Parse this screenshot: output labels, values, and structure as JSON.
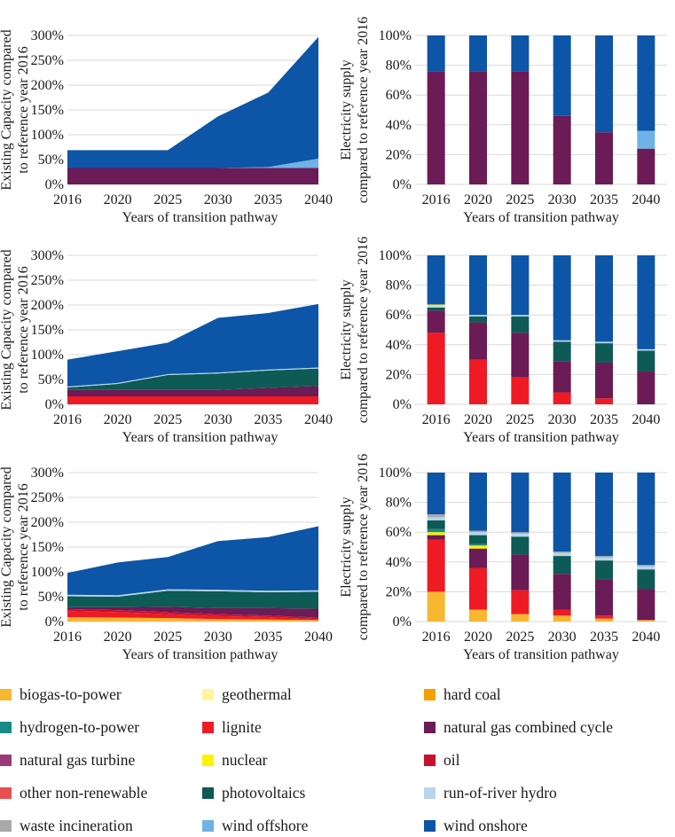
{
  "chart_data": [
    {
      "panel": "scenario-1-capacity",
      "type": "area",
      "stacked": true,
      "x": [
        2016,
        2020,
        2025,
        2030,
        2035,
        2040
      ],
      "ylabel": [
        "Existing Capacity compared",
        "to reference year 2016"
      ],
      "xlabel": "Years of transition pathway",
      "ylim": [
        0,
        300
      ],
      "yticks": [
        "0%",
        "50%",
        "100%",
        "150%",
        "200%",
        "250%",
        "300%"
      ],
      "series": [
        {
          "name": "natural gas combined cycle",
          "values": [
            33,
            33,
            33,
            33,
            33,
            33
          ]
        },
        {
          "name": "wind offshore",
          "values": [
            0,
            0,
            0,
            0,
            2,
            19
          ]
        },
        {
          "name": "wind onshore",
          "values": [
            36,
            36,
            36,
            104,
            150,
            245
          ]
        }
      ]
    },
    {
      "panel": "scenario-1-supply",
      "type": "bar",
      "stacked": true,
      "categories": [
        "2016",
        "2020",
        "2025",
        "2030",
        "2035",
        "2040"
      ],
      "ylabel": [
        "Electricity supply",
        "compared to reference year 2016"
      ],
      "xlabel": "Years of transition pathway",
      "ylim": [
        0,
        100
      ],
      "yticks": [
        "0%",
        "20%",
        "40%",
        "60%",
        "80%",
        "100%"
      ],
      "series": [
        {
          "name": "natural gas combined cycle",
          "values": [
            76,
            76,
            76,
            46,
            35,
            24
          ]
        },
        {
          "name": "wind offshore",
          "values": [
            0,
            0,
            0,
            0,
            0,
            12
          ]
        },
        {
          "name": "wind onshore",
          "values": [
            24,
            24,
            24,
            54,
            65,
            64
          ]
        }
      ]
    },
    {
      "panel": "scenario-2-capacity",
      "type": "area",
      "stacked": true,
      "x": [
        2016,
        2020,
        2025,
        2030,
        2035,
        2040
      ],
      "ylabel": [
        "Existing Capacity compared",
        "to reference year 2016"
      ],
      "xlabel": "Years of transition pathway",
      "ylim": [
        0,
        300
      ],
      "yticks": [
        "0%",
        "50%",
        "100%",
        "150%",
        "200%",
        "250%",
        "300%"
      ],
      "series": [
        {
          "name": "lignite",
          "values": [
            16,
            16,
            16,
            16,
            16,
            16
          ]
        },
        {
          "name": "natural gas combined cycle",
          "values": [
            13,
            13,
            13,
            13,
            17,
            21
          ]
        },
        {
          "name": "photovoltaics",
          "values": [
            5,
            12,
            30,
            33,
            35,
            35
          ]
        },
        {
          "name": "run-of-river hydro",
          "values": [
            2,
            2,
            2,
            2,
            2,
            2
          ]
        },
        {
          "name": "wind onshore",
          "values": [
            54,
            64,
            63,
            110,
            114,
            128
          ]
        }
      ]
    },
    {
      "panel": "scenario-2-supply",
      "type": "bar",
      "stacked": true,
      "categories": [
        "2016",
        "2020",
        "2025",
        "2030",
        "2035",
        "2040"
      ],
      "ylabel": [
        "Electricity supply",
        "compared to reference year 2016"
      ],
      "xlabel": "Years of transition pathway",
      "ylim": [
        0,
        100
      ],
      "yticks": [
        "0%",
        "20%",
        "40%",
        "60%",
        "80%",
        "100%"
      ],
      "series": [
        {
          "name": "lignite",
          "values": [
            48,
            30,
            18,
            8,
            4,
            0
          ]
        },
        {
          "name": "natural gas combined cycle",
          "values": [
            15,
            25,
            30,
            21,
            24,
            22
          ]
        },
        {
          "name": "photovoltaics",
          "values": [
            2,
            4,
            11,
            13,
            13,
            14
          ]
        },
        {
          "name": "run-of-river hydro",
          "values": [
            1,
            1,
            1,
            1,
            1,
            1
          ]
        },
        {
          "name": "nuclear",
          "values": [
            1,
            0,
            0,
            0,
            0,
            0
          ]
        },
        {
          "name": "wind onshore",
          "values": [
            33,
            40,
            40,
            57,
            58,
            63
          ]
        }
      ]
    },
    {
      "panel": "scenario-3-capacity",
      "type": "area",
      "stacked": true,
      "x": [
        2016,
        2020,
        2025,
        2030,
        2035,
        2040
      ],
      "ylabel": [
        "Existing Capacity compared",
        "to reference year 2016"
      ],
      "xlabel": "Years of transition pathway",
      "ylim": [
        0,
        300
      ],
      "yticks": [
        "0%",
        "50%",
        "100%",
        "150%",
        "200%",
        "250%",
        "300%"
      ],
      "series": [
        {
          "name": "biogas-to-power",
          "values": [
            9,
            8,
            7,
            5,
            4,
            3
          ]
        },
        {
          "name": "lignite",
          "values": [
            12,
            11,
            8,
            6,
            5,
            2
          ]
        },
        {
          "name": "oil",
          "values": [
            4,
            4,
            4,
            4,
            3,
            3
          ]
        },
        {
          "name": "natural gas combined cycle",
          "values": [
            4,
            6,
            11,
            12,
            15,
            18
          ]
        },
        {
          "name": "photovoltaics",
          "values": [
            22,
            21,
            32,
            34,
            32,
            34
          ]
        },
        {
          "name": "run-of-river hydro",
          "values": [
            3,
            3,
            3,
            3,
            3,
            3
          ]
        },
        {
          "name": "wind onshore",
          "values": [
            44,
            66,
            65,
            98,
            108,
            129
          ]
        }
      ]
    },
    {
      "panel": "scenario-3-supply",
      "type": "bar",
      "stacked": true,
      "categories": [
        "2016",
        "2020",
        "2025",
        "2030",
        "2035",
        "2040"
      ],
      "ylabel": [
        "Electricity supply",
        "compared to reference year 2016"
      ],
      "xlabel": "Years of transition pathway",
      "ylim": [
        0,
        100
      ],
      "yticks": [
        "0%",
        "20%",
        "40%",
        "60%",
        "80%",
        "100%"
      ],
      "series": [
        {
          "name": "biogas-to-power",
          "values": [
            20,
            8,
            5,
            4,
            2,
            1
          ]
        },
        {
          "name": "lignite",
          "values": [
            35,
            28,
            16,
            4,
            2,
            0
          ]
        },
        {
          "name": "natural gas combined cycle",
          "values": [
            3,
            13,
            24,
            24,
            24,
            21
          ]
        },
        {
          "name": "nuclear",
          "values": [
            2,
            2,
            0,
            0,
            0,
            0
          ]
        },
        {
          "name": "hydrogen-to-power",
          "values": [
            2,
            1,
            0,
            0,
            0,
            0
          ]
        },
        {
          "name": "photovoltaics",
          "values": [
            6,
            6,
            12,
            12,
            13,
            13
          ]
        },
        {
          "name": "run-of-river hydro",
          "values": [
            2,
            2,
            2,
            2,
            2,
            2
          ]
        },
        {
          "name": "waste incineration",
          "values": [
            2,
            1,
            1,
            1,
            1,
            1
          ]
        },
        {
          "name": "wind onshore",
          "values": [
            28,
            39,
            40,
            53,
            56,
            62
          ]
        }
      ]
    }
  ],
  "legend": [
    {
      "label": "biogas-to-power",
      "color": "#f7b731"
    },
    {
      "label": "geothermal",
      "color": "#fff59a"
    },
    {
      "label": "hard coal",
      "color": "#f5a000"
    },
    {
      "label": "hydrogen-to-power",
      "color": "#1a8a86"
    },
    {
      "label": "lignite",
      "color": "#ee1b24"
    },
    {
      "label": "natural gas combined cycle",
      "color": "#6b1b55"
    },
    {
      "label": "natural gas turbine",
      "color": "#9c3a79"
    },
    {
      "label": "nuclear",
      "color": "#fff200"
    },
    {
      "label": "oil",
      "color": "#c8102e"
    },
    {
      "label": "other non-renewable",
      "color": "#e55050"
    },
    {
      "label": "photovoltaics",
      "color": "#0e5a55"
    },
    {
      "label": "run-of-river hydro",
      "color": "#b7d6ee"
    },
    {
      "label": "waste incineration",
      "color": "#a9a9a9"
    },
    {
      "label": "wind offshore",
      "color": "#6fb3e6"
    },
    {
      "label": "wind onshore",
      "color": "#0d55a6"
    }
  ]
}
